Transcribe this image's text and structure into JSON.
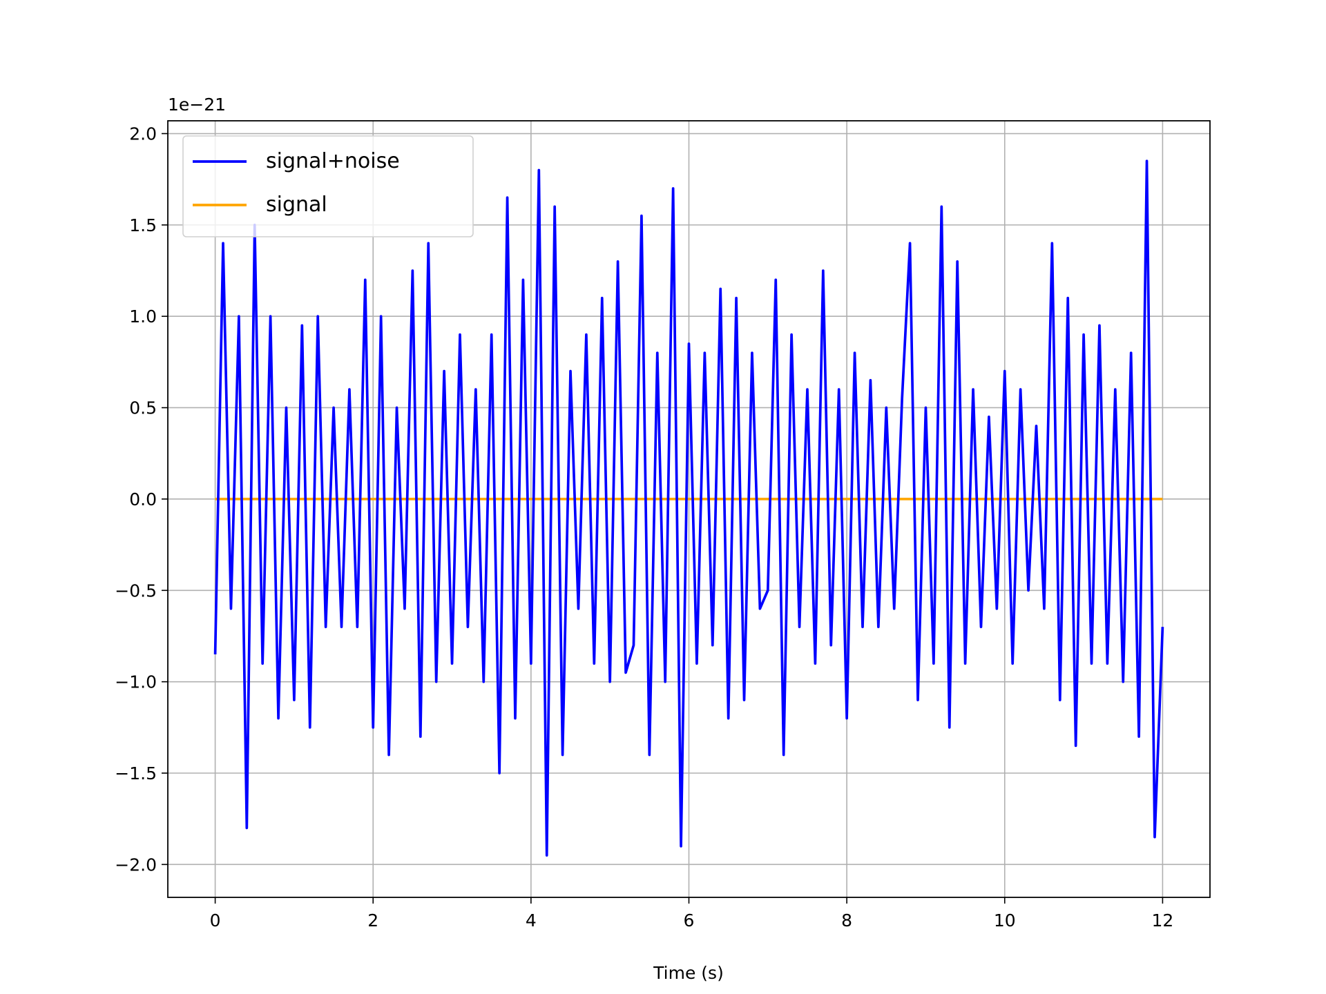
{
  "chart_data": {
    "type": "line",
    "xlabel": "Time (s)",
    "offset_text": "1e−21",
    "x": [
      0,
      0.1,
      0.2,
      0.3,
      0.4,
      0.5,
      0.6,
      0.7,
      0.8,
      0.9,
      1,
      1.1,
      1.2,
      1.3,
      1.4,
      1.5,
      1.6,
      1.7,
      1.8,
      1.9,
      2,
      2.1,
      2.2,
      2.3,
      2.4,
      2.5,
      2.6,
      2.7,
      2.8,
      2.9,
      3,
      3.1,
      3.2,
      3.3,
      3.4,
      3.5,
      3.6,
      3.7,
      3.8,
      3.9,
      4,
      4.1,
      4.2,
      4.3,
      4.4,
      4.5,
      4.6,
      4.7,
      4.8,
      4.9,
      5,
      5.1,
      5.2,
      5.3,
      5.4,
      5.5,
      5.6,
      5.7,
      5.8,
      5.9,
      6,
      6.1,
      6.2,
      6.3,
      6.4,
      6.5,
      6.6,
      6.7,
      6.8,
      6.9,
      7,
      7.1,
      7.2,
      7.3,
      7.4,
      7.5,
      7.6,
      7.7,
      7.8,
      7.9,
      8,
      8.1,
      8.2,
      8.3,
      8.4,
      8.5,
      8.6,
      8.7,
      8.8,
      8.9,
      9,
      9.1,
      9.2,
      9.3,
      9.4,
      9.5,
      9.6,
      9.7,
      9.8,
      9.9,
      10,
      10.1,
      10.2,
      10.3,
      10.4,
      10.5,
      10.6,
      10.7,
      10.8,
      10.9,
      11,
      11.1,
      11.2,
      11.3,
      11.4,
      11.5,
      11.6,
      11.7,
      11.8,
      11.9,
      12
    ],
    "series": [
      {
        "name": "signal+noise",
        "color": "#0000ff",
        "values": [
          -0.85,
          1.4,
          -0.6,
          1.0,
          -1.8,
          1.5,
          -0.9,
          1.0,
          -1.2,
          0.5,
          -1.1,
          0.95,
          -1.25,
          1.0,
          -0.7,
          0.5,
          -0.7,
          0.6,
          -0.7,
          1.2,
          -1.25,
          1.0,
          -1.4,
          0.5,
          -0.6,
          1.25,
          -1.3,
          1.4,
          -1.0,
          0.7,
          -0.9,
          0.9,
          -0.7,
          0.6,
          -1.0,
          0.9,
          -1.5,
          1.65,
          -1.2,
          1.2,
          -0.9,
          1.8,
          -1.95,
          1.6,
          -1.4,
          0.7,
          -0.6,
          0.9,
          -0.9,
          1.1,
          -1.0,
          1.3,
          -0.95,
          -0.8,
          1.55,
          -1.4,
          0.8,
          -1.0,
          1.7,
          -1.9,
          0.85,
          -0.9,
          0.8,
          -0.8,
          1.15,
          -1.2,
          1.1,
          -1.1,
          0.8,
          -0.6,
          -0.5,
          1.2,
          -1.4,
          0.9,
          -0.7,
          0.6,
          -0.9,
          1.25,
          -0.8,
          0.6,
          -1.2,
          0.8,
          -0.7,
          0.65,
          -0.7,
          0.5,
          -0.6,
          0.55,
          1.4,
          -1.1,
          0.5,
          -0.9,
          1.6,
          -1.25,
          1.3,
          -0.9,
          0.6,
          -0.7,
          0.45,
          -0.6,
          0.7,
          -0.9,
          0.6,
          -0.5,
          0.4,
          -0.6,
          1.4,
          -1.1,
          1.1,
          -1.35,
          0.9,
          -0.9,
          0.95,
          -0.9,
          0.6,
          -1.0,
          0.8,
          -1.3,
          1.85,
          -1.85,
          -0.7
        ]
      },
      {
        "name": "signal",
        "color": "#ffa500",
        "values": [
          0,
          0,
          0,
          0,
          0,
          0,
          0,
          0,
          0,
          0,
          0,
          0,
          0,
          0,
          0,
          0,
          0,
          0,
          0,
          0,
          0,
          0,
          0,
          0,
          0,
          0,
          0,
          0,
          0,
          0,
          0,
          0,
          0,
          0,
          0,
          0,
          0,
          0,
          0,
          0,
          0,
          0,
          0,
          0,
          0,
          0,
          0,
          0,
          0,
          0,
          0,
          0,
          0,
          0,
          0,
          0,
          0,
          0,
          0,
          0,
          0,
          0,
          0,
          0,
          0,
          0,
          0,
          0,
          0,
          0,
          0,
          0,
          0,
          0,
          0,
          0,
          0,
          0,
          0,
          0,
          0,
          0,
          0,
          0,
          0,
          0,
          0,
          0,
          0,
          0,
          0,
          0,
          0,
          0,
          0,
          0,
          0,
          0,
          0,
          0,
          0,
          0,
          0,
          0,
          0,
          0,
          0,
          0,
          0,
          0,
          0,
          0,
          0,
          0,
          0,
          0,
          0,
          0,
          0,
          0,
          0
        ]
      }
    ],
    "xlim": [
      -0.6,
      12.6
    ],
    "xticks": [
      0,
      2,
      4,
      6,
      8,
      10,
      12
    ],
    "ylim": [
      -2.18,
      2.07
    ],
    "yticks": [
      {
        "value": -2,
        "label": "−2.0"
      },
      {
        "value": -1.5,
        "label": "−1.5"
      },
      {
        "value": -1,
        "label": "−1.0"
      },
      {
        "value": -0.5,
        "label": "−0.5"
      },
      {
        "value": 0,
        "label": "0.0"
      },
      {
        "value": 0.5,
        "label": "0.5"
      },
      {
        "value": 1,
        "label": "1.0"
      },
      {
        "value": 1.5,
        "label": "1.5"
      },
      {
        "value": 2,
        "label": "2.0"
      }
    ],
    "grid": true,
    "legend": "upper left"
  }
}
